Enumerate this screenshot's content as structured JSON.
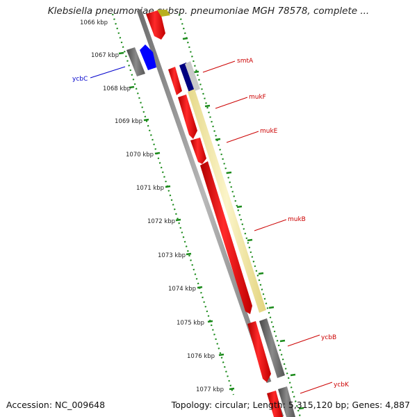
{
  "title": "Klebsiella pneumoniae subsp. pneumoniae MGH 78578, complete ...",
  "accession": "Accession: NC_009648",
  "summary": "Topology: circular; Length: 5,315,120 bp; Genes: 4,887",
  "colors": {
    "tick": "#1a8a1a",
    "backbone": "#888888",
    "red_gene": "#ff0000",
    "dark_red_gene": "#c40000",
    "grey_gene": "#6a6a6a",
    "blue_gene": "#0000ff",
    "navy_gene": "#000080",
    "yellow_gene": "#f2e9a8",
    "red_label": "#cc0000",
    "blue_label": "#0000cc"
  },
  "scale": {
    "unit": "kbp",
    "ticks": [
      {
        "kbp": 1066,
        "label": "1066 kbp"
      },
      {
        "kbp": 1067,
        "label": "1067 kbp"
      },
      {
        "kbp": 1068,
        "label": "1068 kbp"
      },
      {
        "kbp": 1069,
        "label": "1069 kbp"
      },
      {
        "kbp": 1070,
        "label": "1070 kbp"
      },
      {
        "kbp": 1071,
        "label": "1071 kbp"
      },
      {
        "kbp": 1072,
        "label": "1072 kbp"
      },
      {
        "kbp": 1073,
        "label": "1073 kbp"
      },
      {
        "kbp": 1074,
        "label": "1074 kbp"
      },
      {
        "kbp": 1075,
        "label": "1075 kbp"
      },
      {
        "kbp": 1076,
        "label": "1076 kbp"
      },
      {
        "kbp": 1077,
        "label": "1077 kbp"
      }
    ]
  },
  "genes": [
    {
      "name": "ycbC",
      "label_color": "blue_label"
    },
    {
      "name": "smtA",
      "label_color": "red_label"
    },
    {
      "name": "mukF",
      "label_color": "red_label"
    },
    {
      "name": "mukE",
      "label_color": "red_label"
    },
    {
      "name": "mukB",
      "label_color": "red_label"
    },
    {
      "name": "ycbB",
      "label_color": "red_label"
    },
    {
      "name": "ycbK",
      "label_color": "red_label"
    }
  ]
}
